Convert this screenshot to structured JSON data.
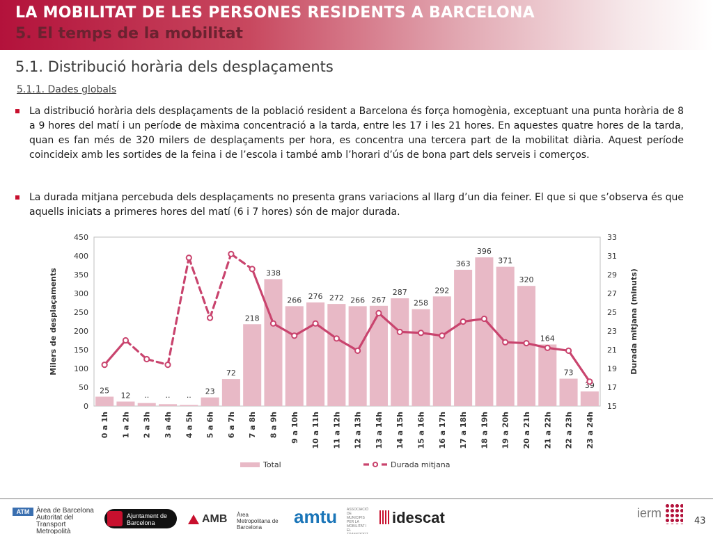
{
  "header": {
    "title": "LA MOBILITAT DE LES PERSONES RESIDENTS A BARCELONA",
    "subtitle": "5. El temps de la mobilitat"
  },
  "section": {
    "title": "5.1. Distribució horària dels desplaçaments",
    "subsection": "5.1.1. Dades globals"
  },
  "bullets": [
    "La distribució horària dels desplaçaments de la població resident a Barcelona és força homogènia, exceptuant una punta horària de 8 a 9 hores del matí i un període de màxima concentració a la tarda, entre les 17 i les 21 hores. En aquestes quatre hores de la tarda, quan es fan més de 320 milers de desplaçaments per hora, es concentra una tercera part de la mobilitat diària. Aquest període coincideix amb les sortides de la feina i de l’escola i també amb l’horari d’ús de bona part dels serveis i comerços.",
    "La durada mitjana percebuda dels desplaçaments no presenta grans variacions al llarg d’un dia feiner. El que si que s’observa és que aquells iniciats a primeres hores del matí (6 i 7 hores) són de major durada."
  ],
  "chart_data": {
    "type": "bar",
    "categories": [
      "0 a 1h",
      "1 a 2h",
      "2 a 3h",
      "3 a 4h",
      "4 a 5h",
      "5 a 6h",
      "6 a 7h",
      "7 a 8h",
      "8 a 9h",
      "9 a 10h",
      "10 a 11h",
      "11 a 12h",
      "12 a 13h",
      "13 a 14h",
      "14 a 15h",
      "15 a 16h",
      "16 a 17h",
      "17 a 18h",
      "18 a 19h",
      "19 a 20h",
      "20 a 21h",
      "21 a 22h",
      "22 a 23h",
      "23 a 24h"
    ],
    "series": [
      {
        "name": "Total",
        "type": "bar",
        "axis": "left",
        "color": "#e8b9c6",
        "values": [
          25,
          12,
          8,
          5,
          3,
          23,
          72,
          218,
          338,
          266,
          276,
          272,
          266,
          267,
          287,
          258,
          292,
          363,
          396,
          371,
          320,
          164,
          73,
          39
        ],
        "labels": [
          "25",
          "12",
          "..",
          "..",
          "..",
          "23",
          "72",
          "218",
          "338",
          "266",
          "276",
          "272",
          "266",
          "267",
          "287",
          "258",
          "292",
          "363",
          "396",
          "371",
          "320",
          "164",
          "73",
          "39"
        ]
      },
      {
        "name": "Durada mitjana",
        "type": "line",
        "axis": "right",
        "color": "#c9446e",
        "values": [
          19.4,
          22.0,
          20.0,
          19.4,
          30.8,
          24.4,
          31.2,
          29.6,
          23.8,
          22.5,
          23.8,
          22.2,
          20.9,
          24.9,
          22.9,
          22.8,
          22.5,
          24.0,
          24.3,
          21.8,
          21.7,
          21.2,
          20.9,
          17.6
        ],
        "dashed_segments": [
          [
            1,
            2
          ],
          [
            2,
            3
          ],
          [
            3,
            4
          ],
          [
            4,
            5
          ],
          [
            5,
            6
          ],
          [
            6,
            7
          ]
        ]
      }
    ],
    "ylabel": "Milers de desplaçaments",
    "ylim": [
      0,
      450
    ],
    "yticks": [
      0,
      50,
      100,
      150,
      200,
      250,
      300,
      350,
      400,
      450
    ],
    "y2label": "Durada mitjana (minuts)",
    "y2lim": [
      15,
      33
    ],
    "y2ticks": [
      15,
      17,
      19,
      21,
      23,
      25,
      27,
      29,
      31,
      33
    ],
    "grid": false,
    "legend": "bottom"
  },
  "footer": {
    "logos": {
      "atm_box": "ATM",
      "atm_text": "Àrea de Barcelona Autoritat del Transport Metropolità",
      "ajb_text": "Ajuntament de Barcelona",
      "amb_text": "AMB",
      "amb_sub": "Àrea Metropolitana de Barcelona",
      "amtu_text": "amtu",
      "amtu_sub": "ASSOCIACIÓ DE MUNICIPIS PER LA MOBILITAT I EL TRANSPORT URBÀ",
      "idescat_text": "idescat",
      "ierm_text": "ierm"
    },
    "page_number": "43"
  }
}
